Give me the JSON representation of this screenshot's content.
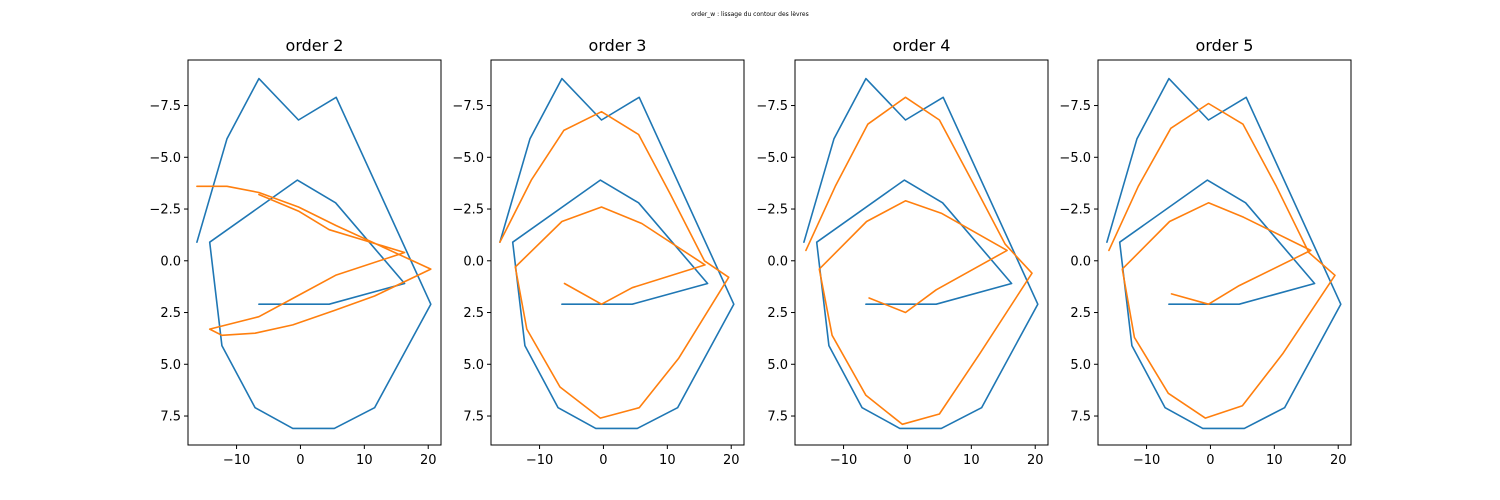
{
  "figure": {
    "suptitle": "order_w : lissage du contour des lèvres"
  },
  "chart_data": [
    {
      "type": "line",
      "title": "order 2",
      "xlim": [
        -17.6,
        22.0
      ],
      "ylim": [
        8.9,
        -9.7
      ],
      "grid": false,
      "xticks": [
        -10,
        0,
        10,
        20
      ],
      "xtick_labels": [
        "−10",
        "0",
        "10",
        "20"
      ],
      "yticks": [
        -7.5,
        -5.0,
        -2.5,
        0.0,
        2.5,
        5.0,
        7.5
      ],
      "ytick_labels": [
        "−7.5",
        "−5.0",
        "−2.5",
        "0.0",
        "2.5",
        "5.0",
        "7.5"
      ],
      "series": [
        {
          "color": "#1f77b4",
          "points": [
            [
              -16.2,
              -0.9
            ],
            [
              -11.5,
              -5.9
            ],
            [
              -6.5,
              -8.8
            ],
            [
              -0.3,
              -6.8
            ],
            [
              5.6,
              -7.9
            ],
            [
              20.4,
              2.1
            ],
            [
              11.6,
              7.1
            ],
            [
              5.3,
              8.1
            ],
            [
              -1.2,
              8.1
            ],
            [
              -7.1,
              7.1
            ],
            [
              -12.3,
              4.1
            ],
            [
              -14.2,
              -0.9
            ],
            [
              -0.5,
              -3.9
            ],
            [
              5.5,
              -2.8
            ],
            [
              16.3,
              1.1
            ],
            [
              4.5,
              2.1
            ],
            [
              -6.5,
              2.1
            ]
          ]
        },
        {
          "color": "#ff7f0e",
          "points": [
            [
              -16.2,
              -3.6
            ],
            [
              -11.5,
              -3.6
            ],
            [
              -6.5,
              -3.3
            ],
            [
              -0.3,
              -2.6
            ],
            [
              5.6,
              -1.7
            ],
            [
              20.4,
              0.4
            ],
            [
              11.6,
              1.7
            ],
            [
              5.3,
              2.4
            ],
            [
              -1.2,
              3.1
            ],
            [
              -7.1,
              3.5
            ],
            [
              -12.3,
              3.6
            ],
            [
              -14.2,
              3.3
            ],
            [
              -6.5,
              2.7
            ],
            [
              -0.5,
              1.7
            ],
            [
              5.5,
              0.7
            ],
            [
              16.3,
              -0.4
            ],
            [
              4.5,
              -1.5
            ],
            [
              -0.3,
              -2.4
            ],
            [
              -6.5,
              -3.2
            ]
          ]
        }
      ]
    },
    {
      "type": "line",
      "title": "order 3",
      "xlim": [
        -17.6,
        22.0
      ],
      "ylim": [
        8.9,
        -9.7
      ],
      "grid": false,
      "xticks": [
        -10,
        0,
        10,
        20
      ],
      "xtick_labels": [
        "−10",
        "0",
        "10",
        "20"
      ],
      "yticks": [
        -7.5,
        -5.0,
        -2.5,
        0.0,
        2.5,
        5.0,
        7.5
      ],
      "ytick_labels": [
        "−7.5",
        "−5.0",
        "−2.5",
        "0.0",
        "2.5",
        "5.0",
        "7.5"
      ],
      "series": [
        {
          "color": "#1f77b4",
          "points": [
            [
              -16.2,
              -0.9
            ],
            [
              -11.5,
              -5.9
            ],
            [
              -6.5,
              -8.8
            ],
            [
              -0.3,
              -6.8
            ],
            [
              5.6,
              -7.9
            ],
            [
              20.4,
              2.1
            ],
            [
              11.6,
              7.1
            ],
            [
              5.3,
              8.1
            ],
            [
              -1.2,
              8.1
            ],
            [
              -7.1,
              7.1
            ],
            [
              -12.3,
              4.1
            ],
            [
              -14.2,
              -0.9
            ],
            [
              -0.5,
              -3.9
            ],
            [
              5.5,
              -2.8
            ],
            [
              16.3,
              1.1
            ],
            [
              4.5,
              2.1
            ],
            [
              -6.5,
              2.1
            ]
          ]
        },
        {
          "color": "#ff7f0e",
          "points": [
            [
              -16.2,
              -0.9
            ],
            [
              -11.3,
              -3.9
            ],
            [
              -6.2,
              -6.3
            ],
            [
              -0.3,
              -7.2
            ],
            [
              5.5,
              -6.1
            ],
            [
              10.5,
              -3.2
            ],
            [
              15.8,
              0.0
            ],
            [
              19.6,
              0.8
            ],
            [
              11.8,
              4.7
            ],
            [
              5.6,
              7.1
            ],
            [
              -0.5,
              7.6
            ],
            [
              -6.8,
              6.1
            ],
            [
              -12.0,
              3.3
            ],
            [
              -13.8,
              0.3
            ],
            [
              -6.5,
              -1.9
            ],
            [
              -0.3,
              -2.6
            ],
            [
              6.0,
              -1.8
            ],
            [
              15.9,
              0.2
            ],
            [
              4.5,
              1.3
            ],
            [
              -0.3,
              2.1
            ],
            [
              -6.1,
              1.1
            ]
          ]
        }
      ]
    },
    {
      "type": "line",
      "title": "order 4",
      "xlim": [
        -17.6,
        22.0
      ],
      "ylim": [
        8.9,
        -9.7
      ],
      "grid": false,
      "xticks": [
        -10,
        0,
        10,
        20
      ],
      "xtick_labels": [
        "−10",
        "0",
        "10",
        "20"
      ],
      "yticks": [
        -7.5,
        -5.0,
        -2.5,
        0.0,
        2.5,
        5.0,
        7.5
      ],
      "ytick_labels": [
        "−7.5",
        "−5.0",
        "−2.5",
        "0.0",
        "2.5",
        "5.0",
        "7.5"
      ],
      "series": [
        {
          "color": "#1f77b4",
          "points": [
            [
              -16.2,
              -0.9
            ],
            [
              -11.5,
              -5.9
            ],
            [
              -6.5,
              -8.8
            ],
            [
              -0.3,
              -6.8
            ],
            [
              5.6,
              -7.9
            ],
            [
              20.4,
              2.1
            ],
            [
              11.6,
              7.1
            ],
            [
              5.3,
              8.1
            ],
            [
              -1.2,
              8.1
            ],
            [
              -7.1,
              7.1
            ],
            [
              -12.3,
              4.1
            ],
            [
              -14.2,
              -0.9
            ],
            [
              -0.5,
              -3.9
            ],
            [
              5.5,
              -2.8
            ],
            [
              16.3,
              1.1
            ],
            [
              4.5,
              2.1
            ],
            [
              -6.5,
              2.1
            ]
          ]
        },
        {
          "color": "#ff7f0e",
          "points": [
            [
              -15.9,
              -0.5
            ],
            [
              -11.3,
              -3.6
            ],
            [
              -6.2,
              -6.6
            ],
            [
              -0.3,
              -7.9
            ],
            [
              5.0,
              -6.8
            ],
            [
              10.2,
              -3.8
            ],
            [
              15.3,
              -0.8
            ],
            [
              19.5,
              0.6
            ],
            [
              11.3,
              4.5
            ],
            [
              5.0,
              7.4
            ],
            [
              -0.8,
              7.9
            ],
            [
              -6.5,
              6.5
            ],
            [
              -11.8,
              3.6
            ],
            [
              -13.8,
              0.4
            ],
            [
              -6.4,
              -1.9
            ],
            [
              -0.3,
              -2.9
            ],
            [
              5.3,
              -2.3
            ],
            [
              15.6,
              -0.5
            ],
            [
              4.5,
              1.4
            ],
            [
              -0.3,
              2.5
            ],
            [
              -6.0,
              1.8
            ]
          ]
        }
      ]
    },
    {
      "type": "line",
      "title": "order 5",
      "xlim": [
        -17.6,
        22.0
      ],
      "ylim": [
        8.9,
        -9.7
      ],
      "grid": false,
      "xticks": [
        -10,
        0,
        10,
        20
      ],
      "xtick_labels": [
        "−10",
        "0",
        "10",
        "20"
      ],
      "yticks": [
        -7.5,
        -5.0,
        -2.5,
        0.0,
        2.5,
        5.0,
        7.5
      ],
      "ytick_labels": [
        "−7.5",
        "−5.0",
        "−2.5",
        "0.0",
        "2.5",
        "5.0",
        "7.5"
      ],
      "series": [
        {
          "color": "#1f77b4",
          "points": [
            [
              -16.2,
              -0.9
            ],
            [
              -11.5,
              -5.9
            ],
            [
              -6.5,
              -8.8
            ],
            [
              -0.3,
              -6.8
            ],
            [
              5.6,
              -7.9
            ],
            [
              20.4,
              2.1
            ],
            [
              11.6,
              7.1
            ],
            [
              5.3,
              8.1
            ],
            [
              -1.2,
              8.1
            ],
            [
              -7.1,
              7.1
            ],
            [
              -12.3,
              4.1
            ],
            [
              -14.2,
              -0.9
            ],
            [
              -0.5,
              -3.9
            ],
            [
              5.5,
              -2.8
            ],
            [
              16.3,
              1.1
            ],
            [
              4.5,
              2.1
            ],
            [
              -6.5,
              2.1
            ]
          ]
        },
        {
          "color": "#ff7f0e",
          "points": [
            [
              -15.9,
              -0.5
            ],
            [
              -11.3,
              -3.6
            ],
            [
              -6.2,
              -6.4
            ],
            [
              -0.3,
              -7.6
            ],
            [
              5.1,
              -6.6
            ],
            [
              10.3,
              -3.6
            ],
            [
              15.4,
              -0.4
            ],
            [
              19.5,
              0.7
            ],
            [
              11.3,
              4.5
            ],
            [
              5.0,
              7.0
            ],
            [
              -0.8,
              7.6
            ],
            [
              -6.6,
              6.4
            ],
            [
              -11.9,
              3.7
            ],
            [
              -13.8,
              0.4
            ],
            [
              -6.4,
              -1.9
            ],
            [
              -0.3,
              -2.8
            ],
            [
              5.2,
              -2.1
            ],
            [
              15.7,
              -0.5
            ],
            [
              4.5,
              1.2
            ],
            [
              -0.3,
              2.1
            ],
            [
              -6.1,
              1.6
            ]
          ]
        }
      ]
    }
  ]
}
